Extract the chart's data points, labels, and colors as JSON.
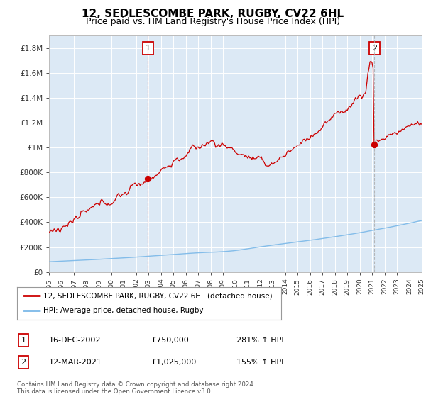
{
  "title": "12, SEDLESCOMBE PARK, RUGBY, CV22 6HL",
  "subtitle": "Price paid vs. HM Land Registry's House Price Index (HPI)",
  "title_fontsize": 11,
  "subtitle_fontsize": 9,
  "background_color": "#dce9f5",
  "fig_bg_color": "#ffffff",
  "x_start_year": 1995,
  "x_end_year": 2025,
  "ylim": [
    0,
    1900000
  ],
  "yticks": [
    0,
    200000,
    400000,
    600000,
    800000,
    1000000,
    1200000,
    1400000,
    1600000,
    1800000
  ],
  "ytick_labels": [
    "£0",
    "£200K",
    "£400K",
    "£600K",
    "£800K",
    "£1M",
    "£1.2M",
    "£1.4M",
    "£1.6M",
    "£1.8M"
  ],
  "hpi_color": "#7ab8e8",
  "price_color": "#cc0000",
  "marker_color": "#cc0000",
  "point1_year": 2002.96,
  "point1_price": 750000,
  "point2_year": 2021.19,
  "point2_price": 1025000,
  "legend_label_price": "12, SEDLESCOMBE PARK, RUGBY, CV22 6HL (detached house)",
  "legend_label_hpi": "HPI: Average price, detached house, Rugby",
  "table_row1": [
    "1",
    "16-DEC-2002",
    "£750,000",
    "281% ↑ HPI"
  ],
  "table_row2": [
    "2",
    "12-MAR-2021",
    "£1,025,000",
    "155% ↑ HPI"
  ],
  "footnote": "Contains HM Land Registry data © Crown copyright and database right 2024.\nThis data is licensed under the Open Government Licence v3.0.",
  "grid_color": "#ffffff"
}
